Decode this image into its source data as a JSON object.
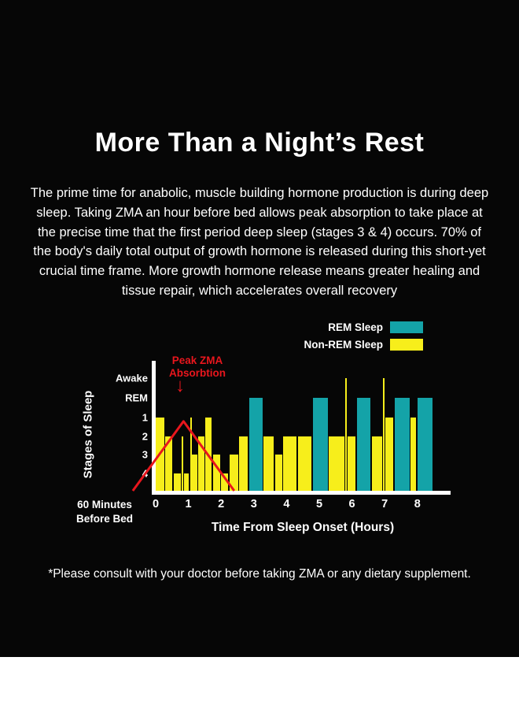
{
  "page": {
    "background_color": "#060606",
    "title": "More Than a Night’s Rest",
    "body_text": "The prime time for anabolic, muscle building hormone production is during deep sleep. Taking ZMA an hour before bed allows peak absorption to take place at the precise time that the first period deep sleep (stages 3 & 4) occurs. 70% of the body's daily total output of growth hormone is released during this short-yet crucial time frame. More growth hormone release means greater healing and tissue repair, which accelerates overall recovery",
    "footnote": "*Please consult with your doctor before taking ZMA or any dietary supplement."
  },
  "chart_data": {
    "type": "bar",
    "title": "",
    "xlabel": "Time From Sleep Onset (Hours)",
    "ylabel": "Stages of Sleep",
    "x_ticks": [
      "0",
      "1",
      "2",
      "3",
      "4",
      "5",
      "6",
      "7",
      "8"
    ],
    "x_origin_label_line1": "60 Minutes",
    "x_origin_label_line2": "Before Bed",
    "y_ticks": [
      "Awake",
      "REM",
      "1",
      "2",
      "3",
      "4"
    ],
    "stage_levels": {
      "Awake": 0.97,
      "REM": 0.8,
      "1": 0.63,
      "2": 0.47,
      "3": 0.31,
      "4": 0.15
    },
    "xlim": [
      0,
      8.5
    ],
    "legend": [
      {
        "label": "REM Sleep",
        "color": "#14a3a8"
      },
      {
        "label": "Non-REM Sleep",
        "color": "#f7ee1b"
      }
    ],
    "colors": {
      "rem": "#14a3a8",
      "nrem": "#f7ee1b",
      "axis": "#ffffff",
      "annotation": "#e8161d"
    },
    "annotation": {
      "line1": "Peak ZMA",
      "line2": "Absorbtion",
      "arrow": "↓",
      "start_hour": -0.7,
      "peak_hour": 0.85,
      "end_hour": 2.4,
      "peak_level": 0.6
    },
    "segments": [
      {
        "start": 0.0,
        "end": 0.3,
        "stage": "1",
        "type": "nrem"
      },
      {
        "start": 0.3,
        "end": 0.55,
        "stage": "2",
        "type": "nrem"
      },
      {
        "start": 0.55,
        "end": 0.8,
        "stage": "4",
        "type": "nrem"
      },
      {
        "start": 0.8,
        "end": 0.86,
        "stage": "2",
        "type": "nrem"
      },
      {
        "start": 0.86,
        "end": 1.05,
        "stage": "4",
        "type": "nrem"
      },
      {
        "start": 1.05,
        "end": 1.11,
        "stage": "1",
        "type": "nrem"
      },
      {
        "start": 1.11,
        "end": 1.3,
        "stage": "3",
        "type": "nrem"
      },
      {
        "start": 1.3,
        "end": 1.52,
        "stage": "2",
        "type": "nrem"
      },
      {
        "start": 1.52,
        "end": 1.75,
        "stage": "1",
        "type": "nrem"
      },
      {
        "start": 1.75,
        "end": 2.0,
        "stage": "3",
        "type": "nrem"
      },
      {
        "start": 2.0,
        "end": 2.25,
        "stage": "4",
        "type": "nrem"
      },
      {
        "start": 2.25,
        "end": 2.55,
        "stage": "3",
        "type": "nrem"
      },
      {
        "start": 2.55,
        "end": 2.85,
        "stage": "2",
        "type": "nrem"
      },
      {
        "start": 2.85,
        "end": 3.3,
        "stage": "REM",
        "type": "rem"
      },
      {
        "start": 3.3,
        "end": 3.65,
        "stage": "2",
        "type": "nrem"
      },
      {
        "start": 3.65,
        "end": 3.9,
        "stage": "3",
        "type": "nrem"
      },
      {
        "start": 3.9,
        "end": 4.35,
        "stage": "2",
        "type": "nrem"
      },
      {
        "start": 4.35,
        "end": 4.8,
        "stage": "2",
        "type": "nrem"
      },
      {
        "start": 4.8,
        "end": 5.3,
        "stage": "REM",
        "type": "rem"
      },
      {
        "start": 5.3,
        "end": 5.8,
        "stage": "2",
        "type": "nrem"
      },
      {
        "start": 5.8,
        "end": 5.87,
        "stage": "Awake",
        "type": "nrem"
      },
      {
        "start": 5.87,
        "end": 6.15,
        "stage": "2",
        "type": "nrem"
      },
      {
        "start": 6.15,
        "end": 6.6,
        "stage": "REM",
        "type": "rem"
      },
      {
        "start": 6.6,
        "end": 6.95,
        "stage": "2",
        "type": "nrem"
      },
      {
        "start": 6.95,
        "end": 7.02,
        "stage": "Awake",
        "type": "nrem"
      },
      {
        "start": 7.02,
        "end": 7.3,
        "stage": "1",
        "type": "nrem"
      },
      {
        "start": 7.3,
        "end": 7.8,
        "stage": "REM",
        "type": "rem"
      },
      {
        "start": 7.8,
        "end": 8.0,
        "stage": "1",
        "type": "nrem"
      },
      {
        "start": 8.0,
        "end": 8.5,
        "stage": "REM",
        "type": "rem"
      }
    ]
  }
}
